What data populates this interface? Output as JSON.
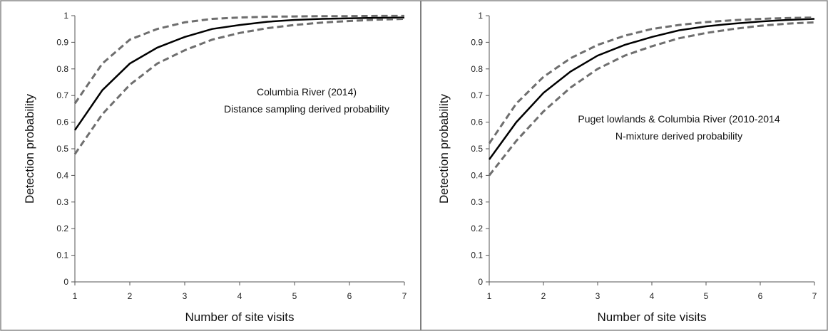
{
  "chart_data": [
    {
      "type": "line",
      "xlabel": "Number of site visits",
      "ylabel": "Detection probability",
      "xlim": [
        1,
        7
      ],
      "ylim": [
        0,
        1
      ],
      "x_ticks": [
        "1",
        "2",
        "3",
        "4",
        "5",
        "6",
        "7"
      ],
      "y_ticks": [
        "0",
        "0.1",
        "0.2",
        "0.3",
        "0.4",
        "0.5",
        "0.6",
        "0.7",
        "0.8",
        "0.9",
        "1"
      ],
      "annotation": [
        "Columbia River (2014)",
        "Distance sampling derived probability"
      ],
      "x": [
        1,
        1.5,
        2,
        2.5,
        3,
        3.5,
        4,
        4.5,
        5,
        5.5,
        6,
        6.5,
        7
      ],
      "series": [
        {
          "style": "solid",
          "values": [
            0.57,
            0.72,
            0.82,
            0.88,
            0.92,
            0.95,
            0.965,
            0.977,
            0.984,
            0.988,
            0.99,
            0.992,
            0.993
          ]
        },
        {
          "style": "dashed",
          "values": [
            0.67,
            0.82,
            0.91,
            0.95,
            0.975,
            0.988,
            0.993,
            0.996,
            0.997,
            0.998,
            0.998,
            0.999,
            0.999
          ]
        },
        {
          "style": "dashed",
          "values": [
            0.48,
            0.63,
            0.74,
            0.82,
            0.87,
            0.91,
            0.935,
            0.953,
            0.965,
            0.974,
            0.98,
            0.985,
            0.988
          ]
        }
      ],
      "colors": {
        "mean": "#000000",
        "ci": "#6e6e6e"
      }
    },
    {
      "type": "line",
      "xlabel": "Number of site visits",
      "ylabel": "Detection probability",
      "xlim": [
        1,
        7
      ],
      "ylim": [
        0,
        1
      ],
      "x_ticks": [
        "1",
        "2",
        "3",
        "4",
        "5",
        "6",
        "7"
      ],
      "y_ticks": [
        "0",
        "0.1",
        "0.2",
        "0.3",
        "0.4",
        "0.5",
        "0.6",
        "0.7",
        "0.8",
        "0.9",
        "1"
      ],
      "annotation": [
        "Puget lowlands & Columbia River (2010-2014",
        "N-mixture derived probability"
      ],
      "x": [
        1,
        1.5,
        2,
        2.5,
        3,
        3.5,
        4,
        4.5,
        5,
        5.5,
        6,
        6.5,
        7
      ],
      "series": [
        {
          "style": "solid",
          "values": [
            0.46,
            0.6,
            0.71,
            0.79,
            0.85,
            0.89,
            0.92,
            0.945,
            0.96,
            0.97,
            0.978,
            0.984,
            0.988
          ]
        },
        {
          "style": "dashed",
          "values": [
            0.52,
            0.67,
            0.77,
            0.84,
            0.89,
            0.925,
            0.95,
            0.965,
            0.976,
            0.983,
            0.988,
            0.991,
            0.993
          ]
        },
        {
          "style": "dashed",
          "values": [
            0.4,
            0.53,
            0.64,
            0.73,
            0.8,
            0.85,
            0.885,
            0.915,
            0.935,
            0.95,
            0.962,
            0.97,
            0.975
          ]
        }
      ],
      "colors": {
        "mean": "#000000",
        "ci": "#6e6e6e"
      }
    }
  ]
}
